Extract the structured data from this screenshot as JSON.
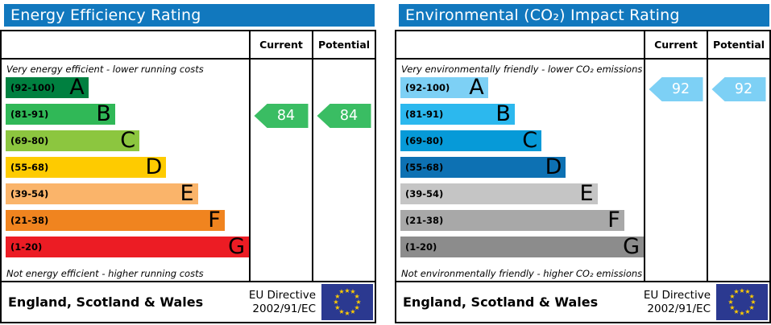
{
  "panels": [
    {
      "title": "Energy Efficiency Rating",
      "columns": {
        "current": "Current",
        "potential": "Potential"
      },
      "top_caption": "Very energy efficient - lower running costs",
      "bottom_caption": "Not energy efficient - higher running costs",
      "footer": {
        "region": "England, Scotland & Wales",
        "directive_line1": "EU Directive",
        "directive_line2": "2002/91/EC",
        "flag": "eu-flag"
      },
      "header_color": "#1178be"
    },
    {
      "title": "Environmental (CO₂) Impact Rating",
      "columns": {
        "current": "Current",
        "potential": "Potential"
      },
      "top_caption": "Very environmentally friendly - lower CO₂ emissions",
      "bottom_caption": "Not environmentally friendly - higher CO₂ emissions",
      "footer": {
        "region": "England, Scotland & Wales",
        "directive_line1": "EU Directive",
        "directive_line2": "2002/91/EC",
        "flag": "eu-flag"
      },
      "header_color": "#1178be"
    }
  ],
  "chart_data": [
    {
      "type": "bar",
      "title": "Energy Efficiency Rating",
      "categories": [
        "A",
        "B",
        "C",
        "D",
        "E",
        "F",
        "G"
      ],
      "band_ranges": [
        "(92-100)",
        "(81-91)",
        "(69-80)",
        "(55-68)",
        "(39-54)",
        "(21-38)",
        "(1-20)"
      ],
      "band_min": [
        92,
        81,
        69,
        55,
        39,
        21,
        1
      ],
      "band_max": [
        100,
        91,
        80,
        68,
        54,
        38,
        20
      ],
      "band_colors": [
        "#008040",
        "#30b857",
        "#8cc63f",
        "#fecb00",
        "#fab46a",
        "#f0841f",
        "#ec1c24"
      ],
      "band_width_pct": [
        34,
        45,
        55,
        66,
        79,
        90,
        100
      ],
      "current": {
        "value": 84,
        "band": "B",
        "band_index": 1,
        "color": "#3abd63"
      },
      "potential": {
        "value": 84,
        "band": "B",
        "band_index": 1,
        "color": "#3abd63"
      },
      "xlabel": "",
      "ylabel": "",
      "legend": [
        "Current",
        "Potential"
      ]
    },
    {
      "type": "bar",
      "title": "Environmental (CO₂) Impact Rating",
      "categories": [
        "A",
        "B",
        "C",
        "D",
        "E",
        "F",
        "G"
      ],
      "band_ranges": [
        "(92-100)",
        "(81-91)",
        "(69-80)",
        "(55-68)",
        "(39-54)",
        "(21-38)",
        "(1-20)"
      ],
      "band_min": [
        92,
        81,
        69,
        55,
        39,
        21,
        1
      ],
      "band_max": [
        100,
        91,
        80,
        68,
        54,
        38,
        20
      ],
      "band_colors": [
        "#7dd0f5",
        "#2cb8ee",
        "#069ad8",
        "#0d71b3",
        "#c5c5c5",
        "#a8a8a8",
        "#8c8c8c"
      ],
      "band_width_pct": [
        36,
        47,
        58,
        68,
        81,
        92,
        100
      ],
      "current": {
        "value": 92,
        "band": "A",
        "band_index": 0,
        "color": "#7dd0f5"
      },
      "potential": {
        "value": 92,
        "band": "A",
        "band_index": 0,
        "color": "#7dd0f5"
      },
      "xlabel": "",
      "ylabel": "",
      "legend": [
        "Current",
        "Potential"
      ]
    }
  ],
  "flag_colors": {
    "background": "#2b3990",
    "star": "#ffcc00"
  }
}
